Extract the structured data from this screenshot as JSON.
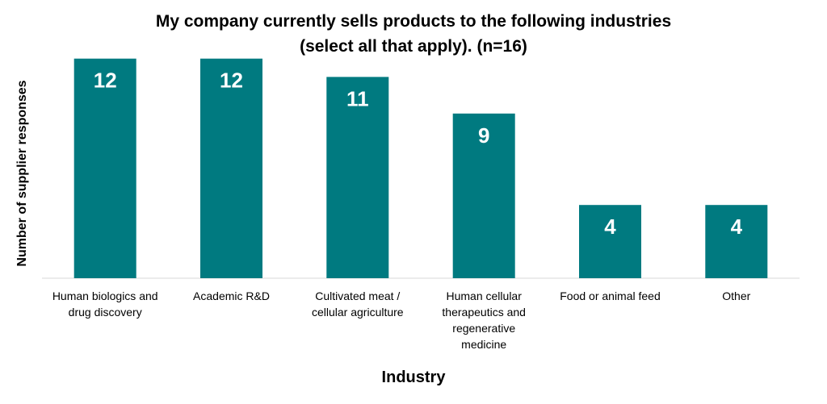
{
  "chart_data": {
    "type": "bar",
    "title_lines": [
      "My company currently sells products to the following industries",
      "(select all that apply). (n=16)"
    ],
    "xlabel": "Industry",
    "ylabel": "Number of supplier responses",
    "categories": [
      [
        "Human biologics and",
        "drug discovery"
      ],
      [
        "Academic R&D"
      ],
      [
        "Cultivated meat /",
        "cellular agriculture"
      ],
      [
        "Human cellular",
        "therapeutics and",
        "regenerative",
        "medicine"
      ],
      [
        "Food or animal feed"
      ],
      [
        "Other"
      ]
    ],
    "values": [
      12,
      12,
      11,
      9,
      4,
      4
    ],
    "data_labels": [
      "12",
      "12",
      "11",
      "9",
      "4",
      "4"
    ],
    "ylim": [
      0,
      13
    ],
    "grid": false,
    "legend": "none",
    "bar_color": "#007A80",
    "axis_color": "#D9D9D9"
  }
}
